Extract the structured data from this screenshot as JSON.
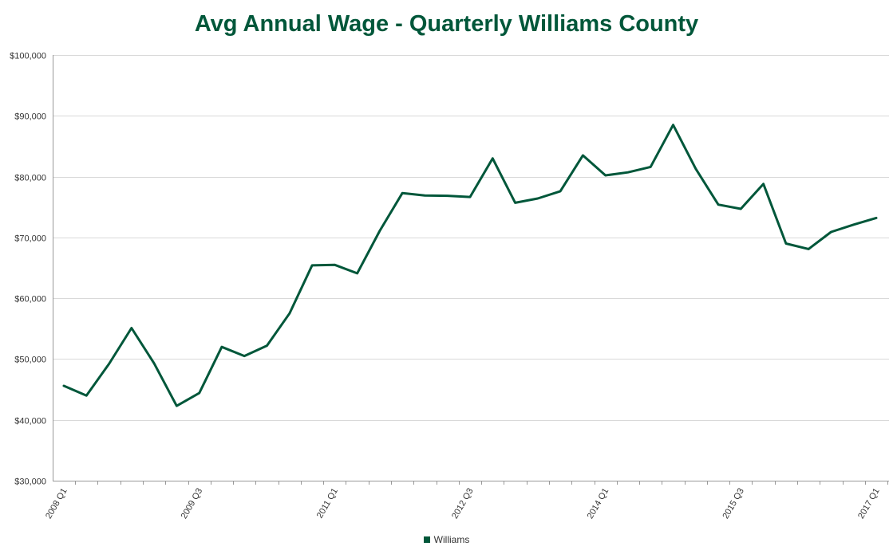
{
  "chart_data": {
    "type": "line",
    "title": "Avg Annual Wage - Quarterly Williams County",
    "ylim": [
      30000,
      100000
    ],
    "ytick_values": [
      30000,
      40000,
      50000,
      60000,
      70000,
      80000,
      90000,
      100000
    ],
    "ytick_labels": [
      "$30,000",
      "$40,000",
      "$50,000",
      "$60,000",
      "$70,000",
      "$80,000",
      "$90,000",
      "$100,000"
    ],
    "x": [
      "2008 Q1",
      "2008 Q2",
      "2008 Q3",
      "2008 Q4",
      "2009 Q1",
      "2009 Q2",
      "2009 Q3",
      "2009 Q4",
      "2010 Q1",
      "2010 Q2",
      "2010 Q3",
      "2010 Q4",
      "2011 Q1",
      "2011 Q2",
      "2011 Q3",
      "2011 Q4",
      "2012 Q1",
      "2012 Q2",
      "2012 Q3",
      "2012 Q4",
      "2013 Q1",
      "2013 Q2",
      "2013 Q3",
      "2013 Q4",
      "2014 Q1",
      "2014 Q2",
      "2014 Q3",
      "2014 Q4",
      "2015 Q1",
      "2015 Q2",
      "2015 Q3",
      "2015 Q4",
      "2016 Q1",
      "2016 Q2",
      "2016 Q3",
      "2016 Q4",
      "2017 Q1"
    ],
    "xtick_labels_shown": [
      "2008 Q1",
      "2009 Q3",
      "2011 Q1",
      "2012 Q3",
      "2014 Q1",
      "2015 Q3",
      "2017 Q1"
    ],
    "grid": true,
    "legend_position": "bottom-center",
    "series": [
      {
        "name": "Williams",
        "color": "#00573a",
        "values": [
          45600,
          44000,
          49200,
          55100,
          49300,
          42300,
          44400,
          52000,
          50500,
          52200,
          57500,
          65400,
          65500,
          64100,
          71100,
          77300,
          76900,
          76850,
          76650,
          83000,
          75700,
          76400,
          77600,
          83500,
          80200,
          80700,
          81600,
          88500,
          81300,
          75400,
          74700,
          78800,
          69000,
          68100,
          70900,
          72100,
          73200
        ]
      }
    ]
  }
}
